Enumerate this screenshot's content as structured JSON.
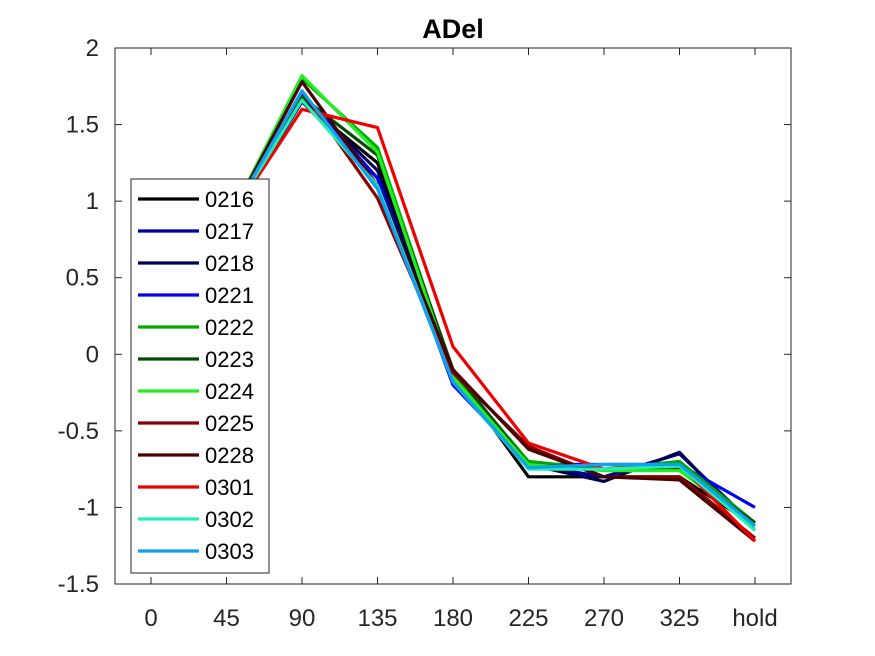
{
  "chart_data": {
    "type": "line",
    "title": "ADel",
    "xlabel": "",
    "ylabel": "",
    "categories": [
      "0",
      "45",
      "90",
      "135",
      "180",
      "225",
      "270",
      "325",
      "hold"
    ],
    "ylim": [
      -1.5,
      2
    ],
    "yticks": [
      "-1.5",
      "-1",
      "-0.5",
      "0",
      "0.5",
      "1",
      "1.5",
      "2"
    ],
    "grid": false,
    "legend_position": "left",
    "series": [
      {
        "name": "0216",
        "color": "#000000",
        "values": [
          0.35,
          0.85,
          1.65,
          1.25,
          -0.12,
          -0.8,
          -0.8,
          -0.8,
          -1.12
        ]
      },
      {
        "name": "0217",
        "color": "#00009a",
        "values": [
          0.35,
          0.85,
          1.65,
          1.15,
          -0.15,
          -0.72,
          -0.8,
          -0.65,
          -1.12
        ]
      },
      {
        "name": "0218",
        "color": "#000050",
        "values": [
          0.35,
          0.85,
          1.68,
          1.2,
          -0.15,
          -0.72,
          -0.83,
          -0.64,
          -1.15
        ]
      },
      {
        "name": "0221",
        "color": "#0000ee",
        "values": [
          0.35,
          0.85,
          1.7,
          1.15,
          -0.2,
          -0.72,
          -0.72,
          -0.72,
          -1.0
        ]
      },
      {
        "name": "0222",
        "color": "#00aa00",
        "values": [
          0.35,
          0.85,
          1.8,
          1.35,
          -0.12,
          -0.7,
          -0.75,
          -0.7,
          -1.1
        ]
      },
      {
        "name": "0223",
        "color": "#004d00",
        "values": [
          0.35,
          0.85,
          1.68,
          1.3,
          -0.1,
          -0.72,
          -0.75,
          -0.75,
          -1.1
        ]
      },
      {
        "name": "0224",
        "color": "#22ee22",
        "values": [
          0.35,
          0.85,
          1.82,
          1.32,
          -0.15,
          -0.72,
          -0.76,
          -0.76,
          -1.12
        ]
      },
      {
        "name": "0225",
        "color": "#8a0000",
        "values": [
          0.35,
          0.85,
          1.72,
          1.02,
          -0.12,
          -0.6,
          -0.8,
          -0.8,
          -1.2
        ]
      },
      {
        "name": "0228",
        "color": "#4a0000",
        "values": [
          0.35,
          0.85,
          1.78,
          1.1,
          -0.1,
          -0.62,
          -0.8,
          -0.82,
          -1.22
        ]
      },
      {
        "name": "0301",
        "color": "#ee0000",
        "values": [
          0.35,
          0.85,
          1.6,
          1.48,
          0.05,
          -0.58,
          -0.75,
          -0.72,
          -1.22
        ]
      },
      {
        "name": "0302",
        "color": "#20f0b0",
        "values": [
          0.35,
          0.85,
          1.66,
          1.1,
          -0.18,
          -0.75,
          -0.75,
          -0.73,
          -1.15
        ]
      },
      {
        "name": "0303",
        "color": "#10a0ee",
        "values": [
          0.35,
          0.85,
          1.72,
          1.08,
          -0.18,
          -0.74,
          -0.72,
          -0.72,
          -1.12
        ]
      }
    ]
  }
}
